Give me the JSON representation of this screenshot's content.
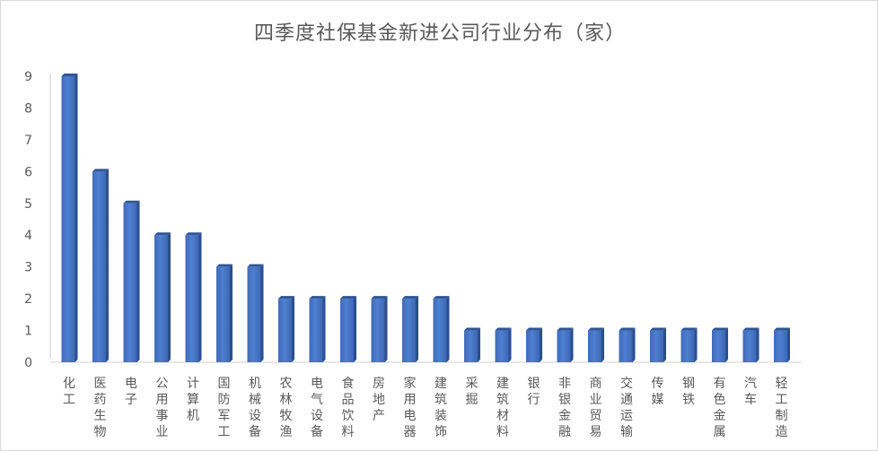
{
  "chart_data": {
    "type": "bar",
    "title": "四季度社保基金新进公司行业分布（家）",
    "categories": [
      "化工",
      "医药生物",
      "电子",
      "公用事业",
      "计算机",
      "国防军工",
      "机械设备",
      "农林牧渔",
      "电气设备",
      "食品饮料",
      "房地产",
      "家用电器",
      "建筑装饰",
      "采掘",
      "建筑材料",
      "银行",
      "非银金融",
      "商业贸易",
      "交通运输",
      "传媒",
      "钢铁",
      "有色金属",
      "汽车",
      "轻工制造"
    ],
    "values": [
      9,
      6,
      5,
      4,
      4,
      3,
      3,
      2,
      2,
      2,
      2,
      2,
      2,
      1,
      1,
      1,
      1,
      1,
      1,
      1,
      1,
      1,
      1,
      1
    ],
    "ylim": [
      0,
      9
    ],
    "yticks": [
      0,
      1,
      2,
      3,
      4,
      5,
      6,
      7,
      8,
      9
    ],
    "grid": false,
    "legend": "none",
    "bar_color": "#4472c4"
  }
}
